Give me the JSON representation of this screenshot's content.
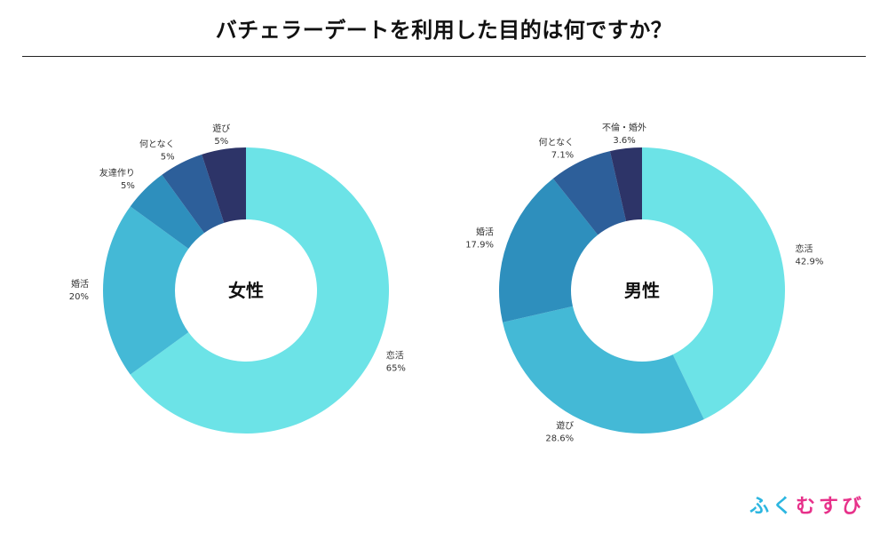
{
  "title": "バチェラーデートを利用した目的は何ですか？",
  "brand": "ふくむすび",
  "chart_data": [
    {
      "type": "pie",
      "center_label": "女性",
      "slices": [
        {
          "label": "恋活",
          "value": 65,
          "display": "65%",
          "color": "#6ce3e7"
        },
        {
          "label": "婚活",
          "value": 20,
          "display": "20%",
          "color": "#44b9d6"
        },
        {
          "label": "友達作り",
          "value": 5,
          "display": "5%",
          "color": "#2e8fbd"
        },
        {
          "label": "何となく",
          "value": 5,
          "display": "5%",
          "color": "#2d5f9a"
        },
        {
          "label": "遊び",
          "value": 5,
          "display": "5%",
          "color": "#2d3468"
        }
      ]
    },
    {
      "type": "pie",
      "center_label": "男性",
      "slices": [
        {
          "label": "恋活",
          "value": 42.9,
          "display": "42.9%",
          "color": "#6ce3e7"
        },
        {
          "label": "遊び",
          "value": 28.6,
          "display": "28.6%",
          "color": "#44b9d6"
        },
        {
          "label": "婚活",
          "value": 17.9,
          "display": "17.9%",
          "color": "#2e8fbd"
        },
        {
          "label": "何となく",
          "value": 7.1,
          "display": "7.1%",
          "color": "#2d5f9a"
        },
        {
          "label": "不倫・婚外",
          "value": 3.6,
          "display": "3.6%",
          "color": "#2d3468"
        }
      ]
    }
  ]
}
